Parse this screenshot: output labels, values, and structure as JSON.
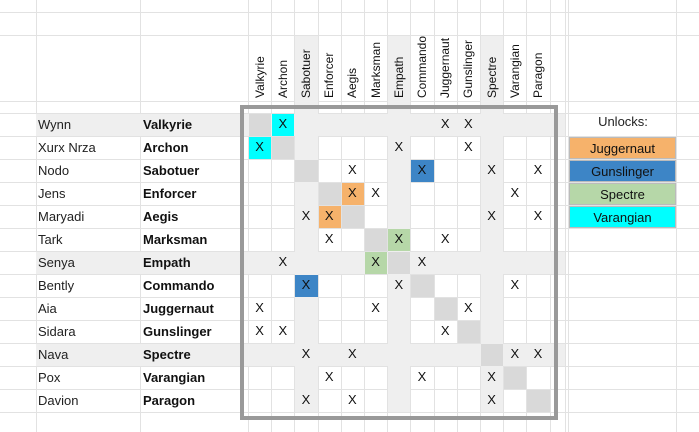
{
  "columns": [
    "Valkyrie",
    "Archon",
    "Sabotuer",
    "Enforcer",
    "Aegis",
    "Marksman",
    "Empath",
    "Commando",
    "Juggernaut",
    "Gunslinger",
    "Spectre",
    "Varangian",
    "Paragon"
  ],
  "shaded_columns": [
    2,
    6,
    10
  ],
  "shaded_rows": [
    0,
    6,
    10
  ],
  "rows": [
    {
      "name": "Wynn",
      "class": "Valkyrie",
      "marks": [
        1,
        8,
        9
      ]
    },
    {
      "name": "Xurx Nrza",
      "class": "Archon",
      "marks": [
        0,
        6,
        9
      ]
    },
    {
      "name": "Nodo",
      "class": "Sabotuer",
      "marks": [
        4,
        7,
        10,
        12
      ]
    },
    {
      "name": "Jens",
      "class": "Enforcer",
      "marks": [
        4,
        5,
        11
      ]
    },
    {
      "name": "Maryadi",
      "class": "Aegis",
      "marks": [
        2,
        3,
        10,
        12
      ]
    },
    {
      "name": "Tark",
      "class": "Marksman",
      "marks": [
        3,
        6,
        8
      ]
    },
    {
      "name": "Senya",
      "class": "Empath",
      "marks": [
        1,
        5,
        7
      ]
    },
    {
      "name": "Bently",
      "class": "Commando",
      "marks": [
        2,
        6,
        11
      ]
    },
    {
      "name": "Aia",
      "class": "Juggernaut",
      "marks": [
        0,
        5,
        9
      ]
    },
    {
      "name": "Sidara",
      "class": "Gunslinger",
      "marks": [
        0,
        1,
        8
      ]
    },
    {
      "name": "Nava",
      "class": "Spectre",
      "marks": [
        2,
        4,
        11,
        12
      ]
    },
    {
      "name": "Pox",
      "class": "Varangian",
      "marks": [
        3,
        7,
        10
      ]
    },
    {
      "name": "Davion",
      "class": "Paragon",
      "marks": [
        2,
        4,
        10
      ]
    }
  ],
  "mark_symbol": "X",
  "highlights": [
    {
      "row": 0,
      "col": 1,
      "color": "#00ffff"
    },
    {
      "row": 1,
      "col": 0,
      "color": "#00ffff"
    },
    {
      "row": 2,
      "col": 7,
      "color": "#3d85c6"
    },
    {
      "row": 7,
      "col": 2,
      "color": "#3d85c6"
    },
    {
      "row": 3,
      "col": 4,
      "color": "#f6b26b"
    },
    {
      "row": 4,
      "col": 3,
      "color": "#f6b26b"
    },
    {
      "row": 5,
      "col": 6,
      "color": "#b6d7a8"
    },
    {
      "row": 6,
      "col": 5,
      "color": "#b6d7a8"
    }
  ],
  "legend": {
    "title": "Unlocks:",
    "items": [
      {
        "label": "Juggernaut",
        "color": "#f6b26b"
      },
      {
        "label": "Gunslinger",
        "color": "#3d85c6"
      },
      {
        "label": "Spectre",
        "color": "#b6d7a8"
      },
      {
        "label": "Varangian",
        "color": "#00ffff"
      }
    ]
  },
  "diagonal_color": "#d9d9d9",
  "shade_color": "#efefef"
}
